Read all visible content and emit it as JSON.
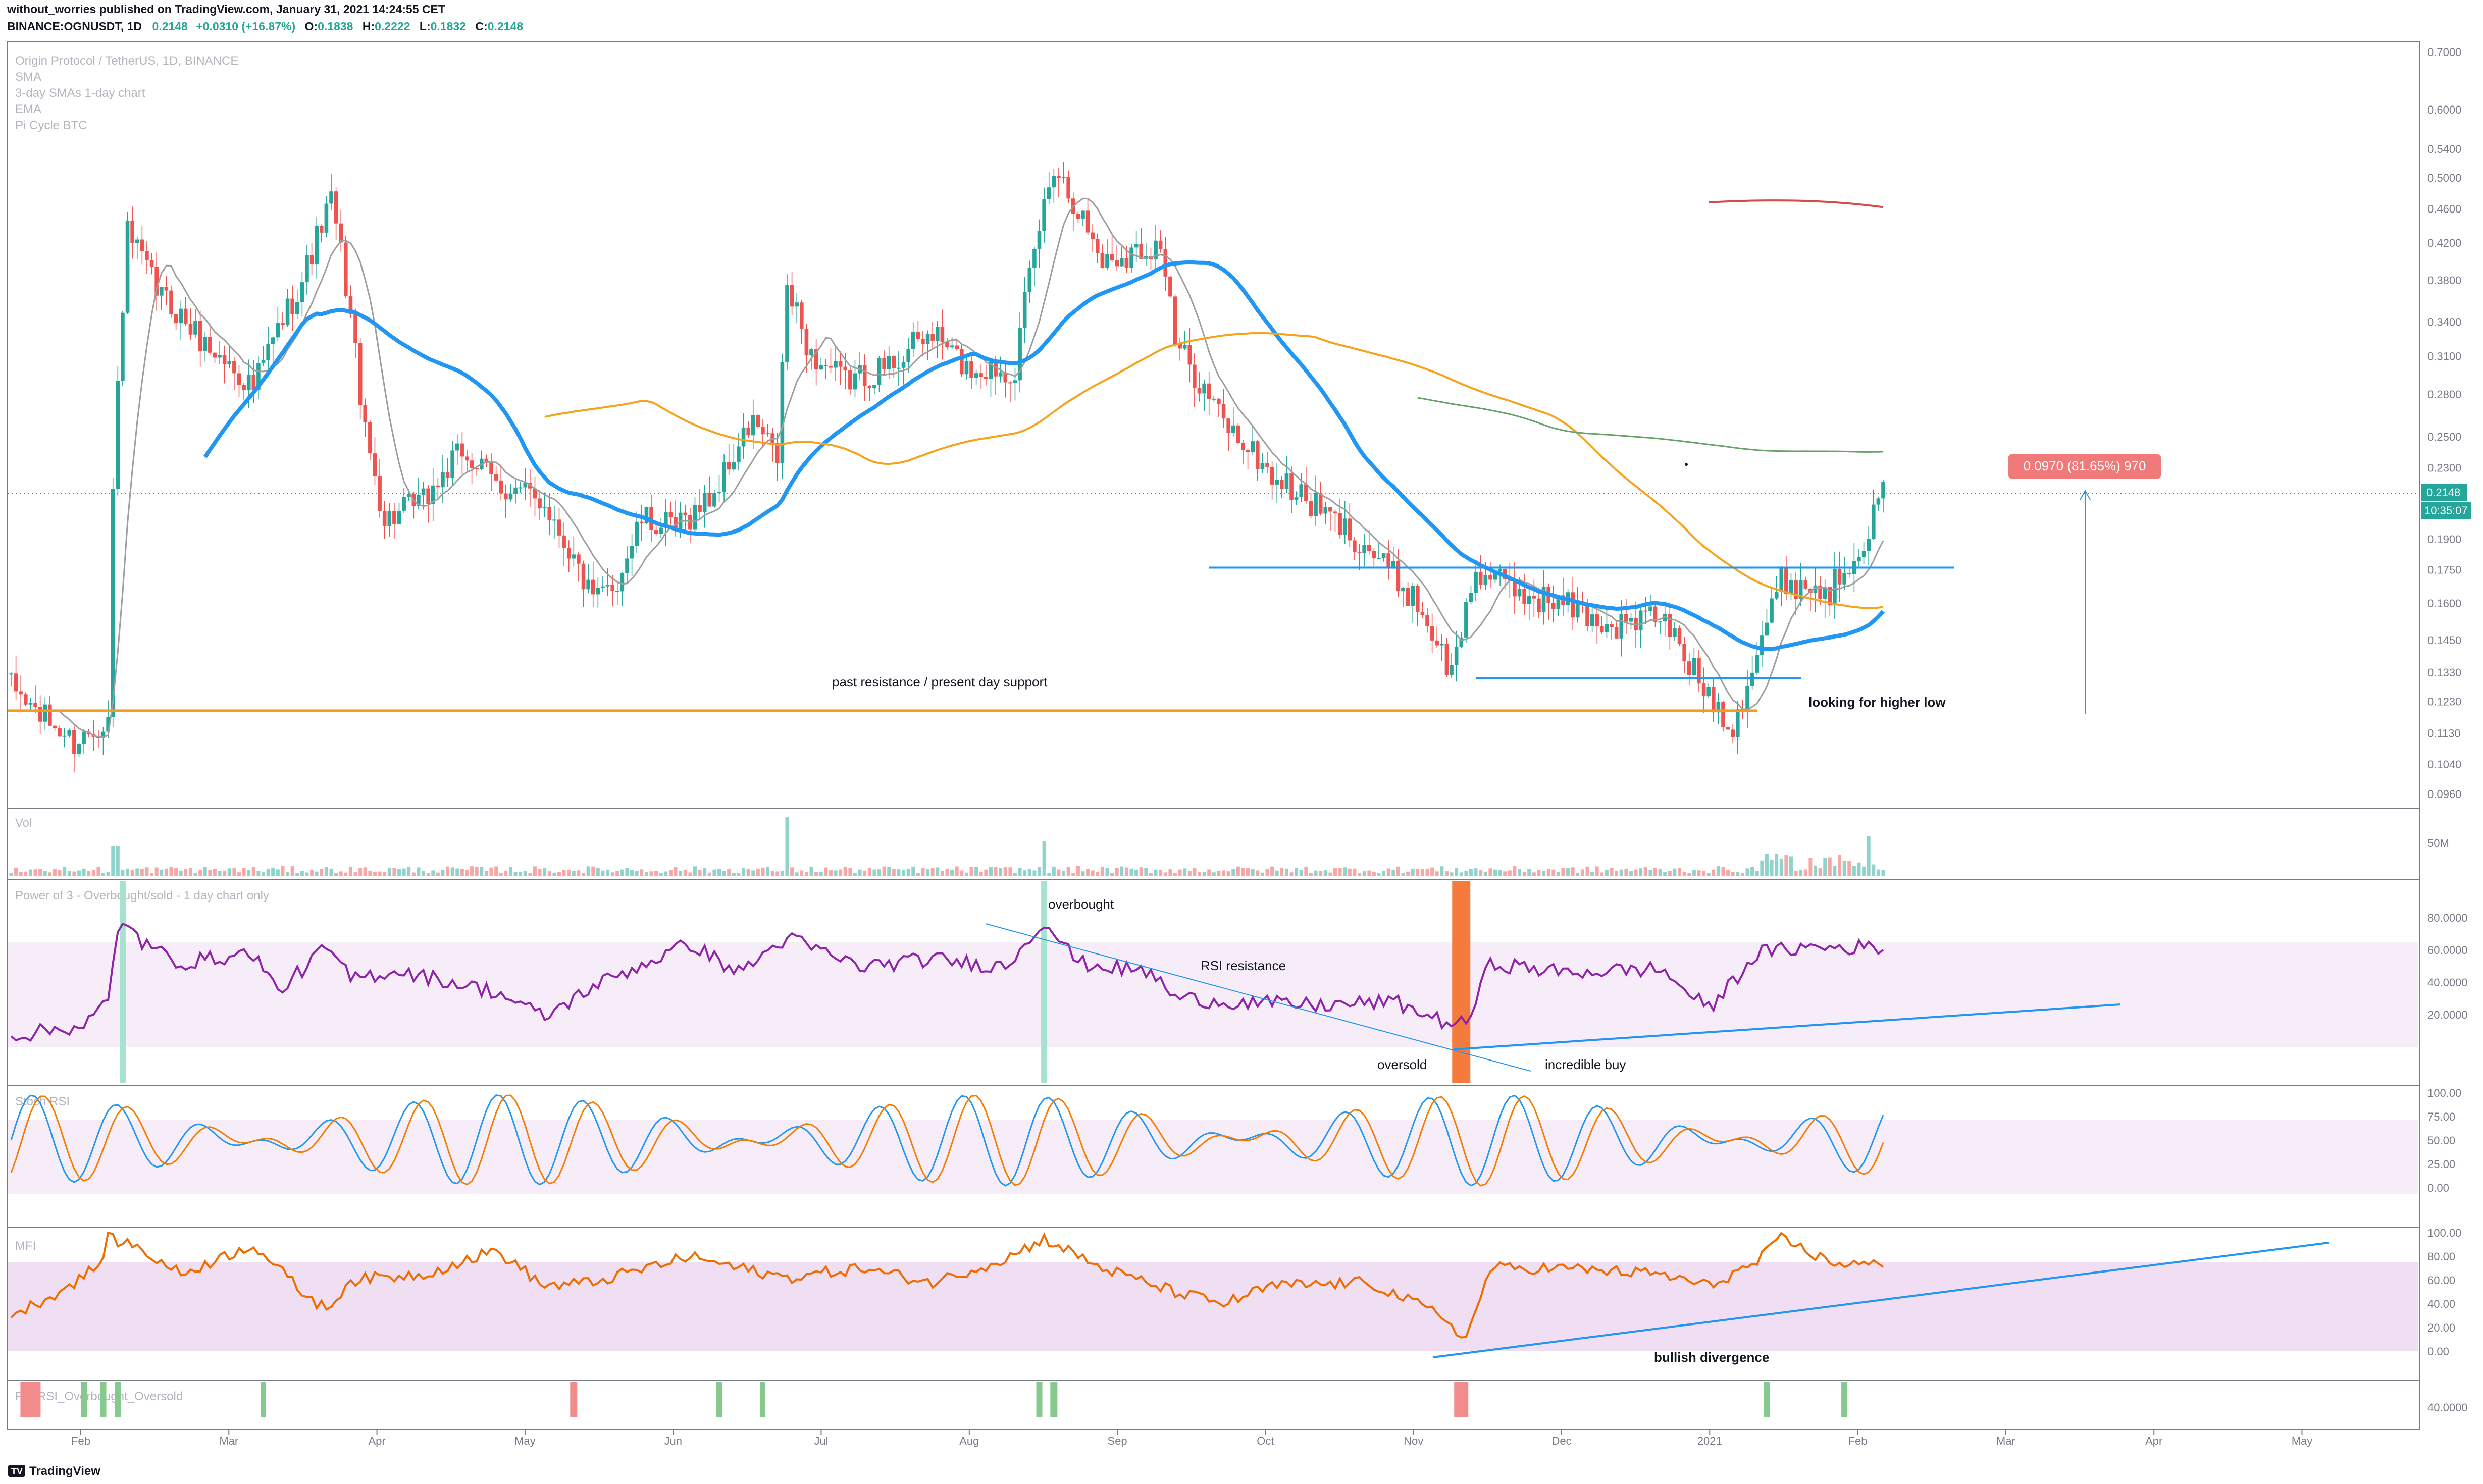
{
  "header": {
    "line1": "without_worries published on TradingView.com, January 31, 2021 14:24:55 CET",
    "symbol": "BINANCE:OGNUSDT, 1D",
    "last": "0.2148",
    "change": "+0.0310 (+16.87%)",
    "o_label": "O:",
    "o": "0.1838",
    "h_label": "H:",
    "h": "0.2222",
    "l_label": "L:",
    "l": "0.1832",
    "c_label": "C:",
    "c": "0.2148"
  },
  "overlay_legend": [
    "Origin Protocol / TetherUS, 1D, BINANCE",
    "SMA",
    "3-day SMAs 1-day chart",
    "EMA",
    "Pi Cycle BTC"
  ],
  "pane_titles": {
    "vol": "Vol",
    "power": "Power of 3 - Overbought/sold - 1 day chart only",
    "stoch": "Stoch RSI",
    "mfi": "MFI",
    "pt": "PT_RSI_Overbought_Oversold"
  },
  "annotations": {
    "support": "past resistance / present day support",
    "higher_low": "looking for higher low",
    "measure": "0.0970 (81.65%) 970",
    "overbought": "overbought",
    "rsi_resistance": "RSI resistance",
    "oversold": "oversold",
    "incredible_buy": "incredible buy",
    "bullish_divergence": "bullish divergence"
  },
  "price_badges": {
    "last": "0.2148",
    "countdown": "10:35:07"
  },
  "footer": {
    "brand": "TradingView"
  },
  "colors": {
    "up": "#26a69a",
    "down": "#ef5350",
    "sma": "#2196f3",
    "ema": "#f7a21b",
    "slow": "#66a266",
    "pi": "#d84a4a",
    "rsi": "#8e24aa",
    "stoch_k": "#2196f3",
    "stoch_d": "#f57c00",
    "mfi": "#ef6c00",
    "trend": "#2196f3",
    "support": "#f59c1a"
  },
  "chart_data": [
    {
      "type": "candlestick",
      "title": "Origin Protocol / TetherUS, 1D, BINANCE",
      "x_ticks": [
        "Feb",
        "Mar",
        "Apr",
        "May",
        "Jun",
        "Jul",
        "Aug",
        "Sep",
        "Oct",
        "Nov",
        "Dec",
        "2021",
        "Feb",
        "Mar",
        "Apr",
        "May"
      ],
      "y_ticks": [
        "0.7000",
        "0.6000",
        "0.5400",
        "0.5000",
        "0.4600",
        "0.4200",
        "0.3800",
        "0.3400",
        "0.3100",
        "0.2800",
        "0.2500",
        "0.2300",
        "0.2148",
        "0.1900",
        "0.1750",
        "0.1600",
        "0.1450",
        "0.1330",
        "0.1230",
        "0.1130",
        "0.1040",
        "0.0960"
      ],
      "key_levels": {
        "support": 0.12,
        "range_top": 0.176,
        "range_bottom": 0.131
      },
      "anchors": [
        [
          0,
          0.128
        ],
        [
          5,
          0.12
        ],
        [
          13,
          0.11
        ],
        [
          20,
          0.118
        ],
        [
          21,
          0.215
        ],
        [
          24,
          0.43
        ],
        [
          30,
          0.37
        ],
        [
          40,
          0.32
        ],
        [
          50,
          0.285
        ],
        [
          60,
          0.38
        ],
        [
          66,
          0.47
        ],
        [
          73,
          0.25
        ],
        [
          77,
          0.2
        ],
        [
          85,
          0.21
        ],
        [
          93,
          0.24
        ],
        [
          100,
          0.22
        ],
        [
          110,
          0.21
        ],
        [
          120,
          0.16
        ],
        [
          125,
          0.17
        ],
        [
          130,
          0.2
        ],
        [
          137,
          0.195
        ],
        [
          145,
          0.215
        ],
        [
          153,
          0.26
        ],
        [
          158,
          0.235
        ],
        [
          160,
          0.37
        ],
        [
          165,
          0.31
        ],
        [
          172,
          0.29
        ],
        [
          180,
          0.3
        ],
        [
          190,
          0.33
        ],
        [
          197,
          0.3
        ],
        [
          207,
          0.3
        ],
        [
          215,
          0.52
        ],
        [
          225,
          0.4
        ],
        [
          237,
          0.42
        ],
        [
          240,
          0.32
        ],
        [
          250,
          0.26
        ],
        [
          260,
          0.225
        ],
        [
          270,
          0.205
        ],
        [
          280,
          0.185
        ],
        [
          290,
          0.16
        ],
        [
          297,
          0.132
        ],
        [
          302,
          0.175
        ],
        [
          310,
          0.165
        ],
        [
          320,
          0.16
        ],
        [
          330,
          0.15
        ],
        [
          340,
          0.155
        ],
        [
          348,
          0.13
        ],
        [
          355,
          0.115
        ],
        [
          360,
          0.14
        ],
        [
          365,
          0.17
        ],
        [
          375,
          0.165
        ],
        [
          383,
          0.195
        ],
        [
          386,
          0.215
        ]
      ]
    },
    {
      "type": "bar",
      "title": "Vol",
      "y_ticks": [
        "50M"
      ]
    },
    {
      "type": "line",
      "title": "Power of 3 - Overbought/sold - 1 day chart only",
      "y_ticks": [
        "80.0000",
        "60.0000",
        "40.0000",
        "20.0000"
      ],
      "anchors": [
        [
          0,
          22
        ],
        [
          15,
          28
        ],
        [
          20,
          40
        ],
        [
          22,
          75
        ],
        [
          24,
          82
        ],
        [
          27,
          70
        ],
        [
          35,
          60
        ],
        [
          50,
          65
        ],
        [
          55,
          45
        ],
        [
          65,
          68
        ],
        [
          70,
          52
        ],
        [
          80,
          56
        ],
        [
          100,
          45
        ],
        [
          110,
          32
        ],
        [
          120,
          48
        ],
        [
          140,
          70
        ],
        [
          150,
          55
        ],
        [
          160,
          73
        ],
        [
          175,
          58
        ],
        [
          190,
          62
        ],
        [
          205,
          58
        ],
        [
          213,
          82
        ],
        [
          220,
          60
        ],
        [
          235,
          55
        ],
        [
          240,
          42
        ],
        [
          250,
          40
        ],
        [
          270,
          38
        ],
        [
          285,
          40
        ],
        [
          295,
          30
        ],
        [
          300,
          28
        ],
        [
          305,
          60
        ],
        [
          320,
          55
        ],
        [
          340,
          57
        ],
        [
          350,
          36
        ],
        [
          360,
          65
        ],
        [
          370,
          68
        ],
        [
          386,
          68
        ]
      ]
    },
    {
      "type": "line",
      "title": "Stoch RSI",
      "y_ticks": [
        "100.00",
        "75.00",
        "50.00",
        "25.00",
        "0.00"
      ]
    },
    {
      "type": "line",
      "title": "MFI",
      "y_ticks": [
        "100.00",
        "80.00",
        "60.00",
        "40.00",
        "20.00",
        "0.00"
      ],
      "anchors": [
        [
          0,
          30
        ],
        [
          10,
          50
        ],
        [
          18,
          72
        ],
        [
          20,
          95
        ],
        [
          25,
          90
        ],
        [
          35,
          65
        ],
        [
          50,
          90
        ],
        [
          60,
          50
        ],
        [
          65,
          35
        ],
        [
          70,
          60
        ],
        [
          85,
          65
        ],
        [
          100,
          85
        ],
        [
          110,
          55
        ],
        [
          120,
          58
        ],
        [
          140,
          80
        ],
        [
          150,
          70
        ],
        [
          160,
          62
        ],
        [
          175,
          70
        ],
        [
          190,
          58
        ],
        [
          205,
          78
        ],
        [
          213,
          95
        ],
        [
          225,
          70
        ],
        [
          240,
          50
        ],
        [
          250,
          40
        ],
        [
          260,
          55
        ],
        [
          280,
          58
        ],
        [
          295,
          30
        ],
        [
          300,
          10
        ],
        [
          305,
          70
        ],
        [
          320,
          70
        ],
        [
          340,
          65
        ],
        [
          350,
          55
        ],
        [
          360,
          75
        ],
        [
          365,
          95
        ],
        [
          375,
          75
        ],
        [
          386,
          72
        ]
      ]
    },
    {
      "type": "bar",
      "title": "PT_RSI_Overbought_Oversold",
      "y_ticks": [
        "40.0000"
      ]
    }
  ]
}
